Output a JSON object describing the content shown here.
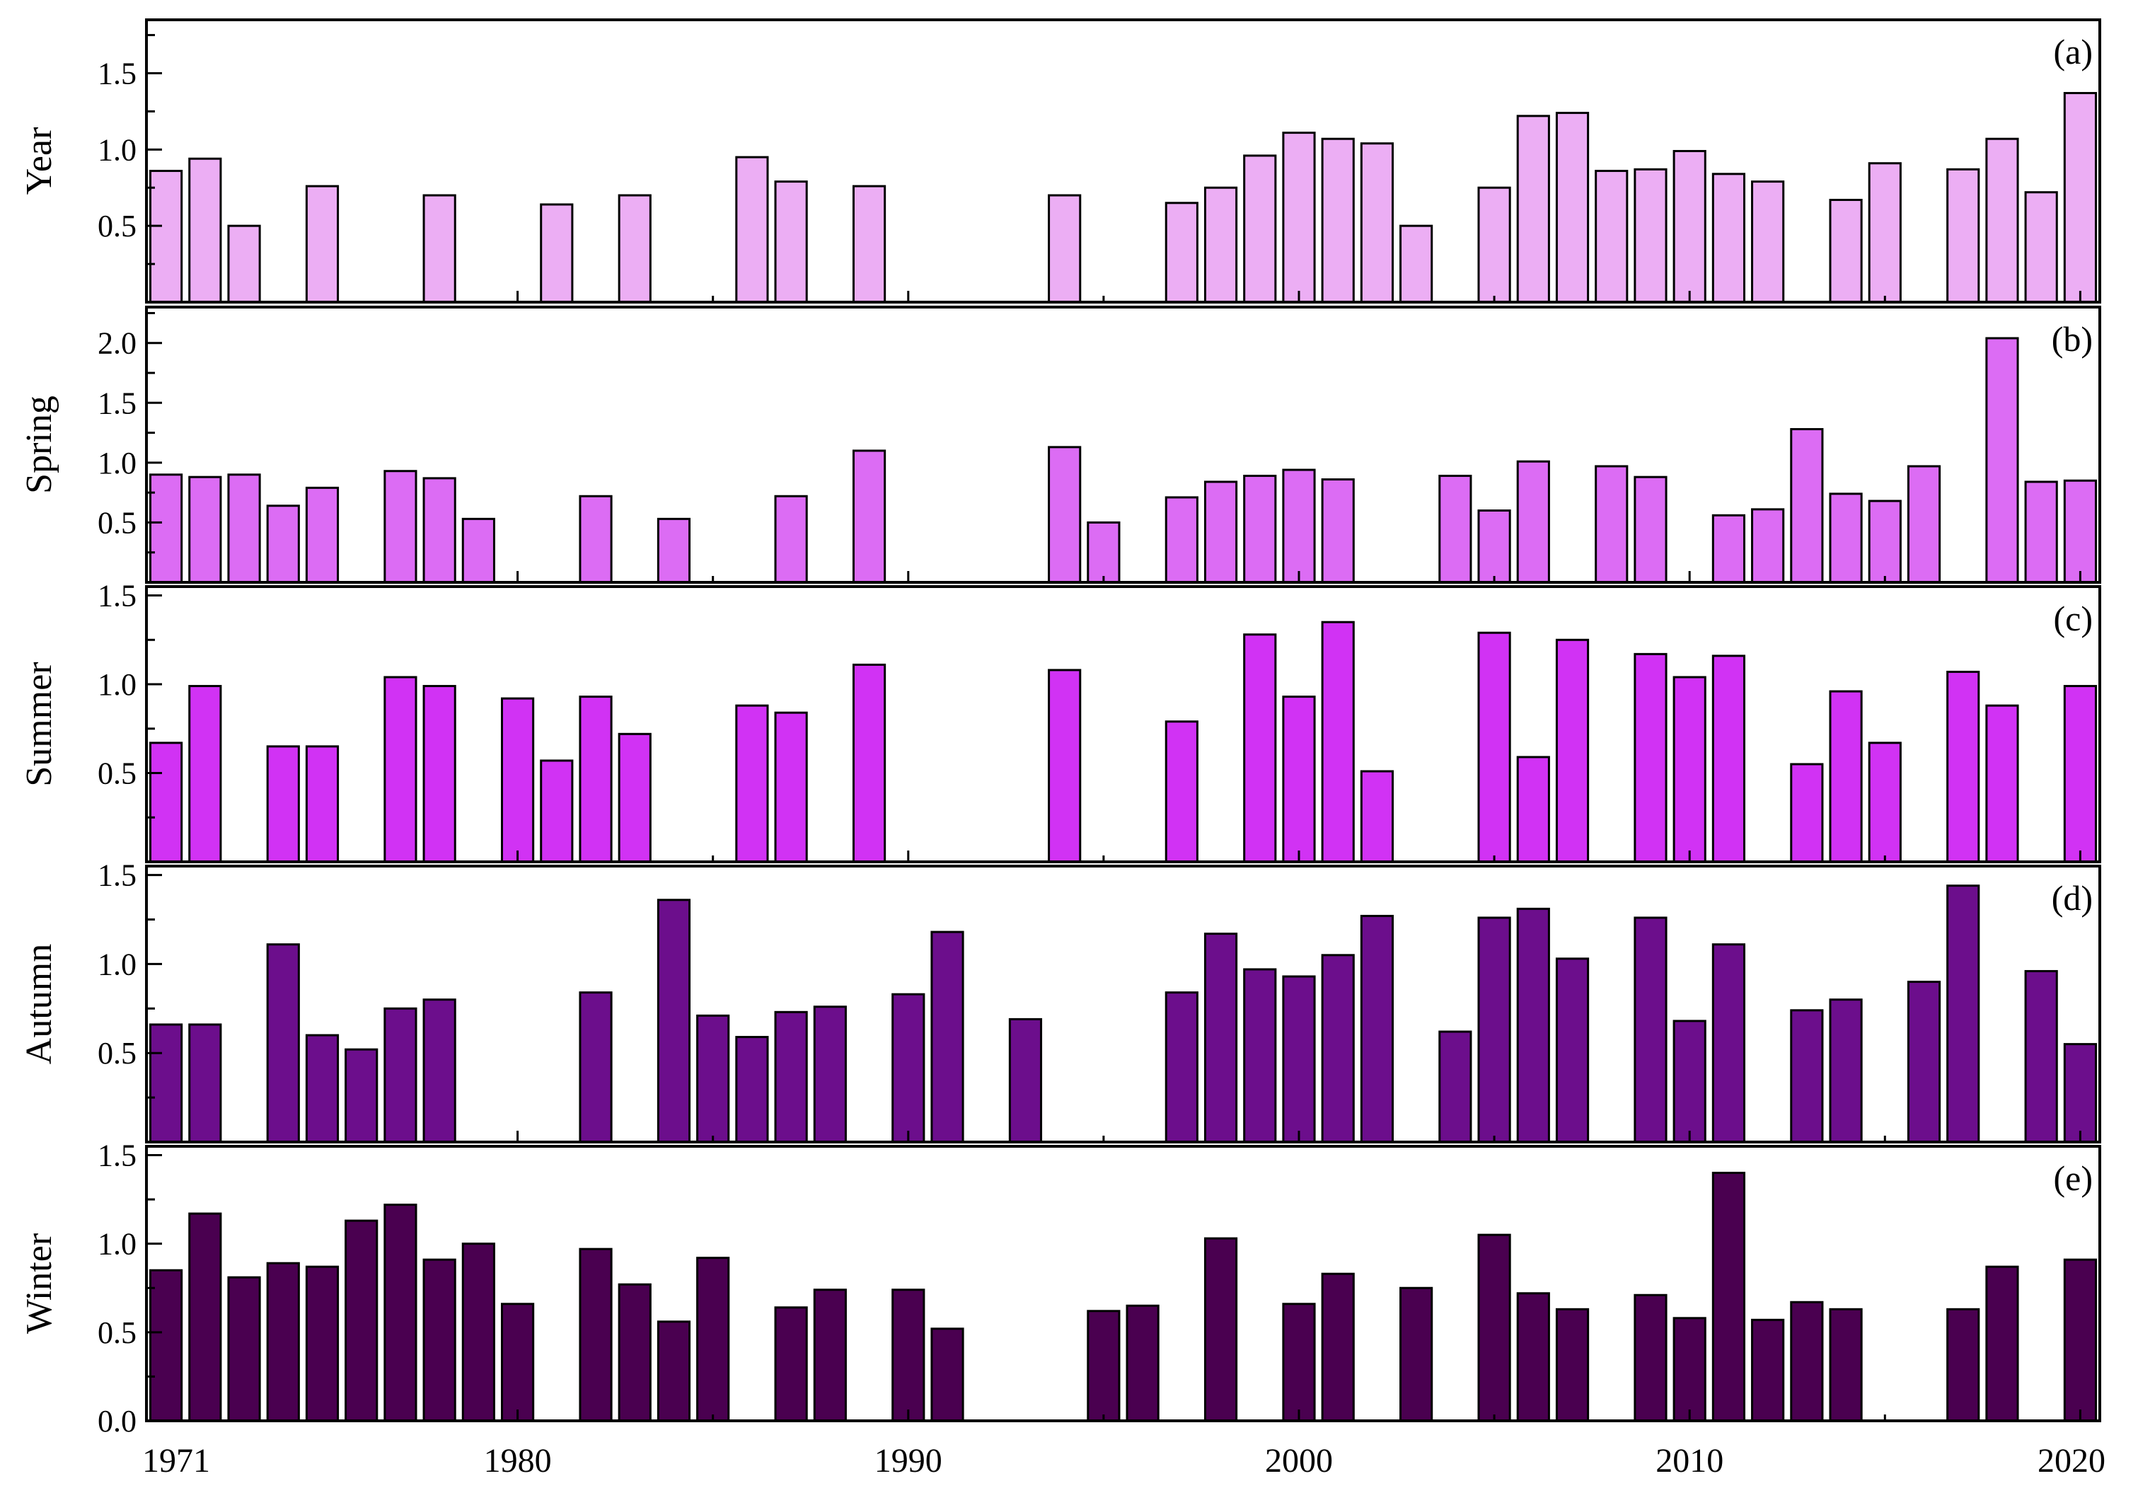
{
  "chart_data": {
    "type": "bar",
    "x_label_years": [
      "1971",
      "1980",
      "1990",
      "2000",
      "2010",
      "2020"
    ],
    "year_start": 1971,
    "year_end": 2020,
    "panels": [
      {
        "id": "a",
        "label": "(a)",
        "ylabel": "Year",
        "color": "#ECAEF4",
        "ylim": [
          0,
          1.85
        ],
        "yticks": [
          "0.5",
          "1.0",
          "1.5"
        ],
        "ytick_values": [
          0.5,
          1.0,
          1.5
        ],
        "values": [
          0.86,
          0.94,
          0.5,
          0,
          0.76,
          0,
          0,
          0.7,
          0,
          0,
          0.64,
          0,
          0.7,
          0,
          0,
          0.95,
          0.79,
          0,
          0.76,
          0,
          0,
          0,
          0,
          0.7,
          0,
          0,
          0.65,
          0.75,
          0.96,
          1.11,
          1.07,
          1.04,
          0.5,
          0,
          0.75,
          1.22,
          1.24,
          0.86,
          0.87,
          0.99,
          0.84,
          0.79,
          0,
          0.67,
          0.91,
          0,
          0.87,
          1.07,
          0.72,
          1.37
        ]
      },
      {
        "id": "b",
        "label": "(b)",
        "ylabel": "Spring",
        "color": "#DC6CF4",
        "ylim": [
          0,
          2.3
        ],
        "yticks": [
          "0.5",
          "1.0",
          "1.5",
          "2.0"
        ],
        "ytick_values": [
          0.5,
          1.0,
          1.5,
          2.0
        ],
        "values": [
          0.9,
          0.88,
          0.9,
          0.64,
          0.79,
          0,
          0.93,
          0.87,
          0.53,
          0,
          0,
          0.72,
          0,
          0.53,
          0,
          0,
          0.72,
          0,
          1.1,
          0,
          0,
          0,
          0,
          1.13,
          0.5,
          0,
          0.71,
          0.84,
          0.89,
          0.94,
          0.86,
          0,
          0,
          0.89,
          0.6,
          1.01,
          0,
          0.97,
          0.88,
          0,
          0.56,
          0.61,
          1.28,
          0.74,
          0.68,
          0.97,
          0,
          2.04,
          0.84,
          0.85
        ]
      },
      {
        "id": "c",
        "label": "(c)",
        "ylabel": "Summer",
        "color": "#D132F4",
        "ylim": [
          0,
          1.55
        ],
        "yticks": [
          "0.5",
          "1.0",
          "1.5"
        ],
        "ytick_values": [
          0.5,
          1.0,
          1.5
        ],
        "values": [
          0.67,
          0.99,
          0,
          0.65,
          0.65,
          0,
          1.04,
          0.99,
          0,
          0.92,
          0.57,
          0.93,
          0.72,
          0,
          0,
          0.88,
          0.84,
          0,
          1.11,
          0,
          0,
          0,
          0,
          1.08,
          0,
          0,
          0.79,
          0,
          1.28,
          0.93,
          1.35,
          0.51,
          0,
          0,
          1.29,
          0.59,
          1.25,
          0,
          1.17,
          1.04,
          1.16,
          0,
          0.55,
          0.96,
          0.67,
          0,
          1.07,
          0.88,
          0,
          0.99
        ]
      },
      {
        "id": "d",
        "label": "(d)",
        "ylabel": "Autumn",
        "color": "#6C0E8C",
        "ylim": [
          0,
          1.55
        ],
        "yticks": [
          "0.5",
          "1.0",
          "1.5"
        ],
        "ytick_values": [
          0.5,
          1.0,
          1.5
        ],
        "values": [
          0.66,
          0.66,
          0,
          1.11,
          0.6,
          0.52,
          0.75,
          0.8,
          0,
          0,
          0,
          0.84,
          0,
          1.36,
          0.71,
          0.59,
          0.73,
          0.76,
          0,
          0.83,
          1.18,
          0,
          0.69,
          0,
          0,
          0,
          0.84,
          1.17,
          0.97,
          0.93,
          1.05,
          1.27,
          0,
          0.62,
          1.26,
          1.31,
          1.03,
          0,
          1.26,
          0.68,
          1.11,
          0,
          0.74,
          0.8,
          0,
          0.9,
          1.44,
          0,
          0.96,
          0.55
        ]
      },
      {
        "id": "e",
        "label": "(e)",
        "ylabel": "Winter",
        "color": "#4A0050",
        "ylim": [
          0,
          1.55
        ],
        "yticks": [
          "0.0",
          "0.5",
          "1.0",
          "1.5"
        ],
        "ytick_values": [
          0.0,
          0.5,
          1.0,
          1.5
        ],
        "values": [
          0.85,
          1.17,
          0.81,
          0.89,
          0.87,
          1.13,
          1.22,
          0.91,
          1.0,
          0.66,
          0,
          0.97,
          0.77,
          0.56,
          0.92,
          0,
          0.64,
          0.74,
          0,
          0.74,
          0.52,
          0,
          0,
          0,
          0.62,
          0.65,
          0,
          1.03,
          0,
          0.66,
          0.83,
          0,
          0.75,
          0,
          1.05,
          0.72,
          0.63,
          0,
          0.71,
          0.58,
          1.4,
          0.57,
          0.67,
          0.63,
          0,
          0,
          0.63,
          0.87,
          0,
          0.91
        ]
      }
    ]
  }
}
